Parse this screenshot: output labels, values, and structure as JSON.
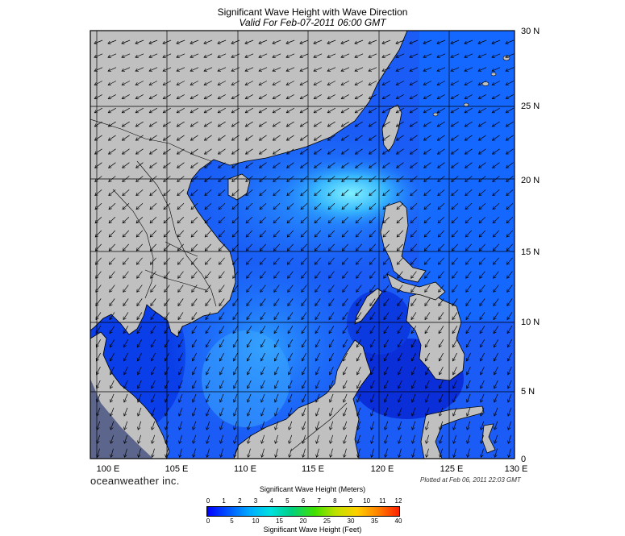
{
  "map": {
    "title": "Significant Wave Height with Wave Direction",
    "subtitle": "Valid For Feb-07-2011 06:00 GMT",
    "lon_labels": [
      "100 E",
      "105 E",
      "110 E",
      "115 E",
      "120 E",
      "125 E",
      "130 E"
    ],
    "lat_labels": [
      "30 N",
      "25 N",
      "20 N",
      "15 N",
      "10 N",
      "5 N",
      "0"
    ],
    "lon_range": [
      99,
      129
    ],
    "lat_range": [
      0,
      30
    ],
    "wave_direction": "from the northeast",
    "colors": {
      "land": "#c0c0c0",
      "sea_low": "#1030e0",
      "sea_mid": "#1a70ff",
      "sea_high": "#40c8ff",
      "arrow": "#000000"
    }
  },
  "footer": {
    "brand": "oceanweather inc.",
    "plotted": "Plotted at Feb 06, 2011 22:03 GMT"
  },
  "scale": {
    "meters_title": "Significant Wave Height (Meters)",
    "meters_ticks": [
      "0",
      "1",
      "2",
      "3",
      "4",
      "5",
      "6",
      "7",
      "8",
      "9",
      "10",
      "11",
      "12"
    ],
    "feet_title": "Significant Wave Height (Feet)",
    "feet_ticks": [
      "0",
      "5",
      "10",
      "15",
      "20",
      "25",
      "30",
      "35",
      "40"
    ],
    "colors": [
      "#0000ff",
      "#0055ff",
      "#00aaff",
      "#00e0e0",
      "#00d080",
      "#40e000",
      "#c0e000",
      "#ffd000",
      "#ff8000",
      "#ff2000"
    ]
  }
}
